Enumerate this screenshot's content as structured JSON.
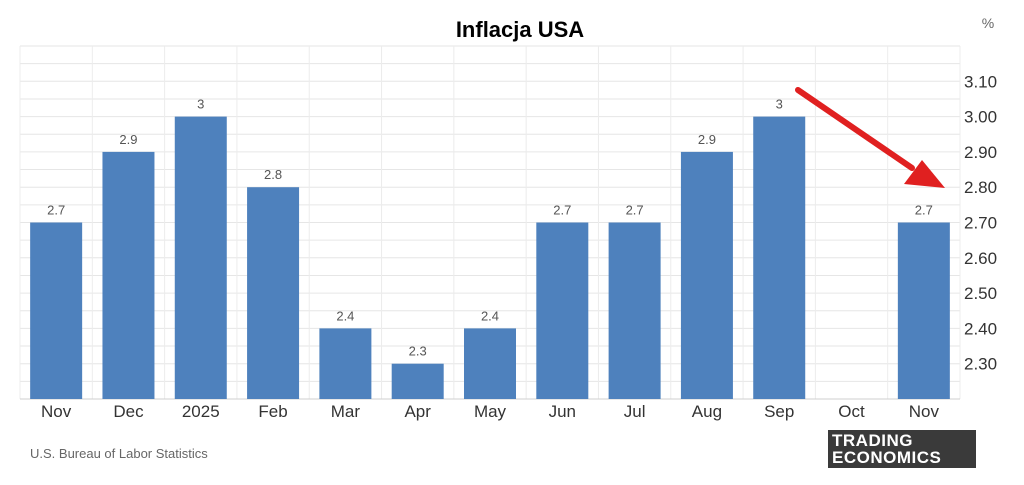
{
  "chart_data": {
    "type": "bar",
    "title": "Inflacja USA",
    "unit": "%",
    "categories": [
      "Nov",
      "Dec",
      "2025",
      "Feb",
      "Mar",
      "Apr",
      "May",
      "Jun",
      "Jul",
      "Aug",
      "Sep",
      "Oct",
      "Nov"
    ],
    "values": [
      2.7,
      2.9,
      3.0,
      2.8,
      2.4,
      2.3,
      2.4,
      2.7,
      2.7,
      2.9,
      3.0,
      null,
      2.7
    ],
    "data_labels": [
      "2.7",
      "2.9",
      "3",
      "2.8",
      "2.4",
      "2.3",
      "2.4",
      "2.7",
      "2.7",
      "2.9",
      "3",
      "",
      "2.7"
    ],
    "y_ticks": [
      "2.30",
      "2.40",
      "2.50",
      "2.60",
      "2.70",
      "2.80",
      "2.90",
      "3.00",
      "3.10"
    ],
    "ylim": [
      2.2,
      3.2
    ],
    "grid": true,
    "bar_color": "#4e81bd",
    "annotation": {
      "type": "arrow",
      "color": "#e02020",
      "direction": "down-right"
    }
  },
  "source": "U.S. Bureau of Labor Statistics",
  "logo": {
    "line1": "TRADING",
    "line2": "ECONOMICS"
  }
}
